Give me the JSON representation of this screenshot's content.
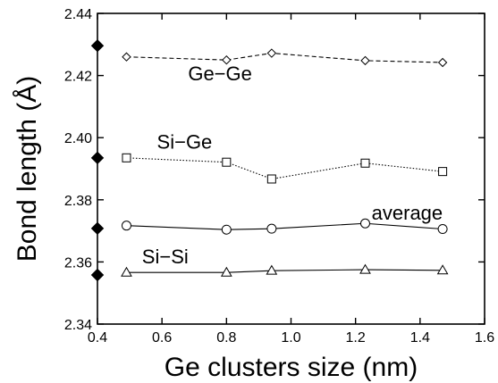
{
  "chart_data": {
    "type": "line",
    "xlabel": "Ge clusters size (nm)",
    "ylabel": "Bond length (Å)",
    "xlim": [
      0.4,
      1.6
    ],
    "ylim": [
      2.34,
      2.44
    ],
    "x_ticks": [
      "0.4",
      "0.6",
      "0.8",
      "1.0",
      "1.2",
      "1.4",
      "1.6"
    ],
    "y_ticks": [
      "2.34",
      "2.36",
      "2.38",
      "2.40",
      "2.42",
      "2.44"
    ],
    "grid": false,
    "x": [
      0.49,
      0.8,
      0.94,
      1.23,
      1.47
    ],
    "series": [
      {
        "name": "Ge-Ge",
        "marker": "diamond",
        "line": "dashed",
        "values": [
          2.426,
          2.425,
          2.4272,
          2.4248,
          2.4242
        ]
      },
      {
        "name": "Si-Ge",
        "marker": "square",
        "line": "dotted",
        "values": [
          2.3935,
          2.3921,
          2.3867,
          2.3918,
          2.3891
        ]
      },
      {
        "name": "average",
        "marker": "circle",
        "line": "solid",
        "values": [
          2.3717,
          2.3704,
          2.3707,
          2.3724,
          2.3706
        ]
      },
      {
        "name": "Si-Si",
        "marker": "triangle",
        "line": "solid",
        "values": [
          2.3566,
          2.3566,
          2.3572,
          2.3575,
          2.3573
        ]
      }
    ],
    "reference_points": {
      "x": 0.4,
      "values": [
        2.4296,
        2.3935,
        2.3708,
        2.3558
      ],
      "marker": "filled-diamond"
    },
    "annotations": [
      {
        "text": "Ge−Ge",
        "x": 0.78,
        "y": 2.4185
      },
      {
        "text": "Si−Ge",
        "x": 0.67,
        "y": 2.3965
      },
      {
        "text": "average",
        "x": 1.36,
        "y": 2.3736
      },
      {
        "text": "Si−Si",
        "x": 0.61,
        "y": 2.3595
      }
    ]
  }
}
